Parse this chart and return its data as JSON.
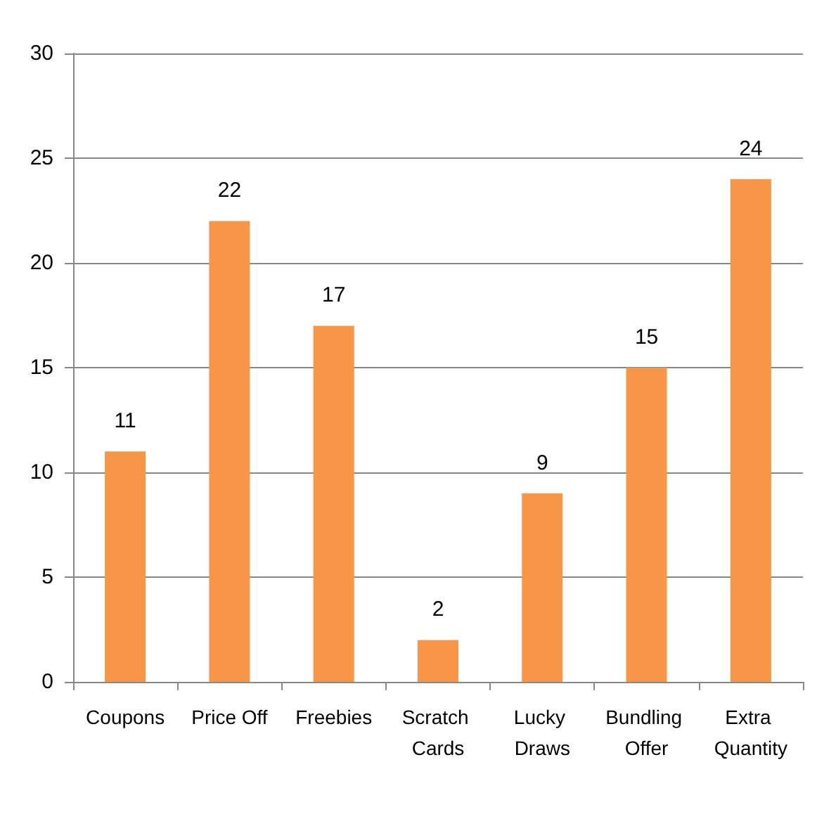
{
  "chart_data": {
    "type": "bar",
    "categories": [
      "Coupons",
      "Price Off",
      "Freebies",
      "Scratch Cards",
      "Lucky Draws",
      "Bundling Offer",
      "Extra Quantity"
    ],
    "values": [
      11,
      22,
      17,
      2,
      9,
      15,
      24
    ],
    "color": "#f79646",
    "ylim": [
      0,
      30
    ],
    "yticks": [
      0,
      5,
      10,
      15,
      20,
      25,
      30
    ],
    "grid": "y",
    "data_labels": true
  }
}
